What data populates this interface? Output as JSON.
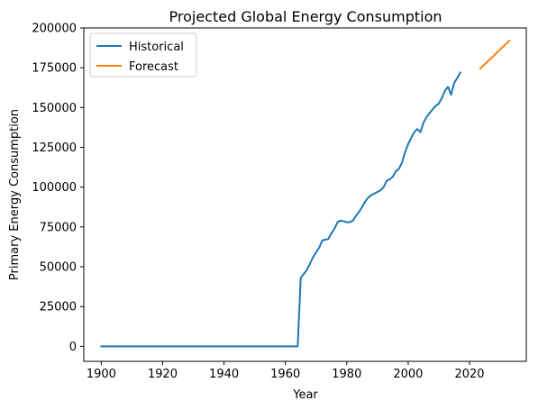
{
  "chart_data": {
    "type": "line",
    "title": "Projected Global Energy Consumption",
    "xlabel": "Year",
    "ylabel": "Primary Energy Consumption",
    "xlim": [
      1894.3,
      2038.5
    ],
    "ylim": [
      -9400,
      200000
    ],
    "x_ticks": [
      1900,
      1920,
      1940,
      1960,
      1980,
      2000,
      2020
    ],
    "y_ticks": [
      0,
      25000,
      50000,
      75000,
      100000,
      125000,
      150000,
      175000,
      200000
    ],
    "grid": false,
    "legend_position": "top-left",
    "series": [
      {
        "name": "Historical",
        "color": "#1f77b4",
        "points": [
          [
            1900,
            0
          ],
          [
            1910,
            0
          ],
          [
            1920,
            0
          ],
          [
            1930,
            0
          ],
          [
            1940,
            0
          ],
          [
            1950,
            0
          ],
          [
            1960,
            0
          ],
          [
            1964,
            0
          ],
          [
            1965,
            43000
          ],
          [
            1966,
            45500
          ],
          [
            1967,
            48000
          ],
          [
            1968,
            52000
          ],
          [
            1969,
            56000
          ],
          [
            1970,
            59000
          ],
          [
            1971,
            62000
          ],
          [
            1972,
            66500
          ],
          [
            1973,
            67000
          ],
          [
            1974,
            67500
          ],
          [
            1975,
            71000
          ],
          [
            1976,
            74000
          ],
          [
            1977,
            78000
          ],
          [
            1978,
            79000
          ],
          [
            1979,
            78500
          ],
          [
            1980,
            78000
          ],
          [
            1981,
            78000
          ],
          [
            1982,
            79000
          ],
          [
            1983,
            82000
          ],
          [
            1984,
            84500
          ],
          [
            1985,
            87500
          ],
          [
            1986,
            91000
          ],
          [
            1987,
            93500
          ],
          [
            1988,
            95000
          ],
          [
            1989,
            96000
          ],
          [
            1990,
            97000
          ],
          [
            1991,
            98000
          ],
          [
            1992,
            100000
          ],
          [
            1993,
            104000
          ],
          [
            1994,
            105000
          ],
          [
            1995,
            106500
          ],
          [
            1996,
            110000
          ],
          [
            1997,
            111500
          ],
          [
            1998,
            115500
          ],
          [
            1999,
            122000
          ],
          [
            2000,
            127000
          ],
          [
            2001,
            131000
          ],
          [
            2002,
            134500
          ],
          [
            2003,
            136500
          ],
          [
            2004,
            134500
          ],
          [
            2005,
            140500
          ],
          [
            2006,
            144000
          ],
          [
            2007,
            146500
          ],
          [
            2008,
            149000
          ],
          [
            2009,
            151000
          ],
          [
            2010,
            152500
          ],
          [
            2011,
            156000
          ],
          [
            2012,
            160500
          ],
          [
            2013,
            163000
          ],
          [
            2014,
            158000
          ],
          [
            2015,
            165500
          ],
          [
            2016,
            168500
          ],
          [
            2017,
            172000
          ]
        ]
      },
      {
        "name": "Forecast",
        "color": "#ff7f0e",
        "points": [
          [
            2023.5,
            174500
          ],
          [
            2033,
            192000
          ]
        ]
      }
    ]
  }
}
